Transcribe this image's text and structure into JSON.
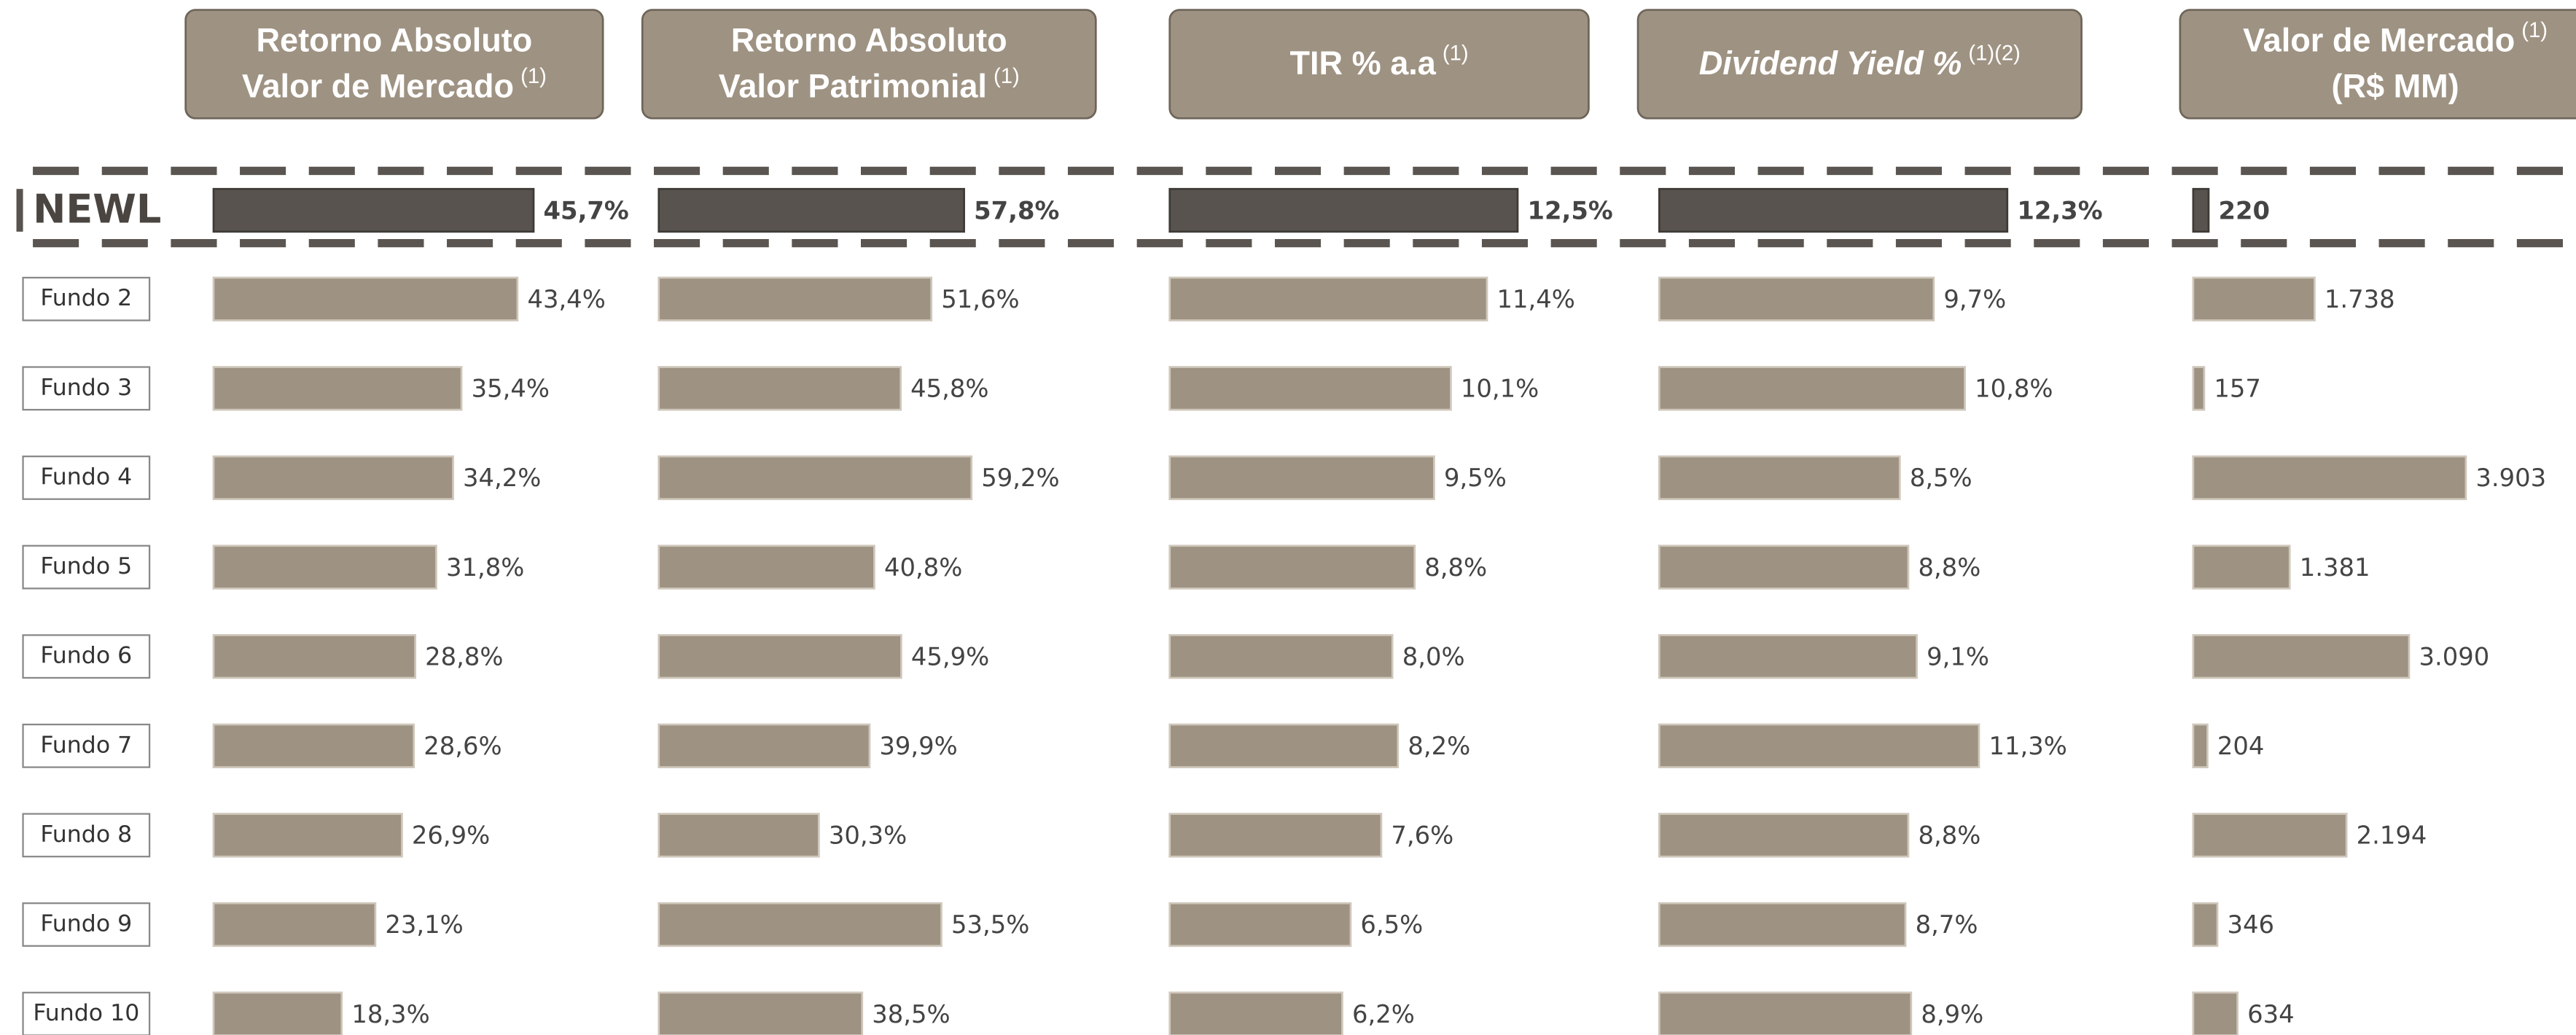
{
  "categories": [
    "NEWL",
    "Fundo 2",
    "Fundo 3",
    "Fundo 4",
    "Fundo 5",
    "Fundo 6",
    "Fundo 7",
    "Fundo 8",
    "Fundo 9",
    "Fundo 10"
  ],
  "chart_data": [
    {
      "type": "bar",
      "orientation": "horizontal",
      "title": [
        "Retorno Absoluto",
        "Valor de Mercado"
      ],
      "note": "(1)",
      "values": [
        45.7,
        43.4,
        35.4,
        34.2,
        31.8,
        28.8,
        28.6,
        26.9,
        23.1,
        18.3
      ],
      "value_labels": [
        "45,7%",
        "43,4%",
        "35,4%",
        "34,2%",
        "31,8%",
        "28,8%",
        "28,6%",
        "26,9%",
        "23,1%",
        "18,3%"
      ],
      "xlim": [
        0,
        61
      ],
      "color": "#9e9282",
      "highlight_color": "#58534e"
    },
    {
      "type": "bar",
      "orientation": "horizontal",
      "title": [
        "Retorno Absoluto",
        "Valor Patrimonial"
      ],
      "note": "(1)",
      "values": [
        57.8,
        51.6,
        45.8,
        59.2,
        40.8,
        45.9,
        39.9,
        30.3,
        53.5,
        38.5
      ],
      "value_labels": [
        "57,8%",
        "51,6%",
        "45,8%",
        "59,2%",
        "40,8%",
        "45,9%",
        "39,9%",
        "30,3%",
        "53,5%",
        "38,5%"
      ],
      "xlim": [
        0,
        93
      ],
      "color": "#9e9282",
      "highlight_color": "#58534e"
    },
    {
      "type": "bar",
      "orientation": "horizontal",
      "title": [
        "TIR % a.a"
      ],
      "note": "(1)",
      "values": [
        12.5,
        11.4,
        10.1,
        9.5,
        8.8,
        8.0,
        8.2,
        7.6,
        6.5,
        6.2
      ],
      "value_labels": [
        "12,5%",
        "11,4%",
        "10,1%",
        "9,5%",
        "8,8%",
        "8,0%",
        "8,2%",
        "7,6%",
        "6,5%",
        "6,2%"
      ],
      "xlim": [
        0,
        17
      ],
      "color": "#9e9282",
      "highlight_color": "#58534e"
    },
    {
      "type": "bar",
      "orientation": "horizontal",
      "title": [
        "Dividend Yield %"
      ],
      "note": "(1)(2)",
      "italic": true,
      "values": [
        12.3,
        9.7,
        10.8,
        8.5,
        8.8,
        9.1,
        11.3,
        8.8,
        8.7,
        8.9
      ],
      "value_labels": [
        "12,3%",
        "9,7%",
        "10,8%",
        "8,5%",
        "8,8%",
        "9,1%",
        "11,3%",
        "8,8%",
        "8,7%",
        "8,9%"
      ],
      "xlim": [
        0,
        18
      ],
      "color": "#9e9282",
      "highlight_color": "#58534e"
    },
    {
      "type": "bar",
      "orientation": "horizontal",
      "title": [
        "Valor de Mercado"
      ],
      "note": "(1)",
      "subtitle": "(R$ MM)",
      "values": [
        220,
        1738,
        157,
        3903,
        1381,
        3090,
        204,
        2194,
        346,
        634
      ],
      "value_labels": [
        "220",
        "1.738",
        "157",
        "3.903",
        "1.381",
        "3.090",
        "204",
        "2.194",
        "346",
        "634"
      ],
      "xlim": [
        0,
        5480
      ],
      "color": "#9e9282",
      "highlight_color": "#58534e"
    }
  ]
}
